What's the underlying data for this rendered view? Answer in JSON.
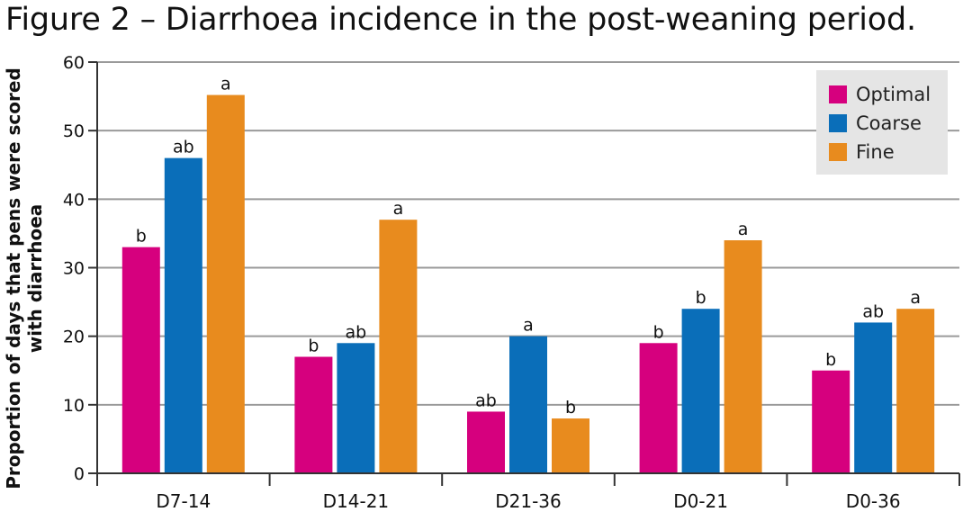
{
  "figure_title": "Figure 2 – Diarrhoea incidence in the post-weaning period.",
  "chart_data": {
    "type": "bar",
    "title": "Figure 2 – Diarrhoea incidence in the post-weaning period.",
    "xlabel": "",
    "ylabel_lines": [
      "Proportion of days that pens were scored",
      "with diarrhoea"
    ],
    "ylim": [
      0,
      60
    ],
    "yticks": [
      0,
      10,
      20,
      30,
      40,
      50,
      60
    ],
    "grid": true,
    "legend_position": "top-right",
    "categories": [
      "D7-14",
      "D14-21",
      "D21-36",
      "D0-21",
      "D0-36"
    ],
    "series": [
      {
        "name": "Optimal",
        "color": "#d6007e",
        "values": [
          33,
          17,
          9,
          19,
          15
        ],
        "labels": [
          "b",
          "b",
          "ab",
          "b",
          "b"
        ]
      },
      {
        "name": "Coarse",
        "color": "#0a6eb9",
        "values": [
          46,
          19,
          20,
          24,
          22
        ],
        "labels": [
          "ab",
          "ab",
          "a",
          "b",
          "ab"
        ]
      },
      {
        "name": "Fine",
        "color": "#e88b1e",
        "values": [
          55.2,
          37,
          8,
          34,
          24
        ],
        "labels": [
          "a",
          "a",
          "b",
          "a",
          "a"
        ]
      }
    ]
  }
}
